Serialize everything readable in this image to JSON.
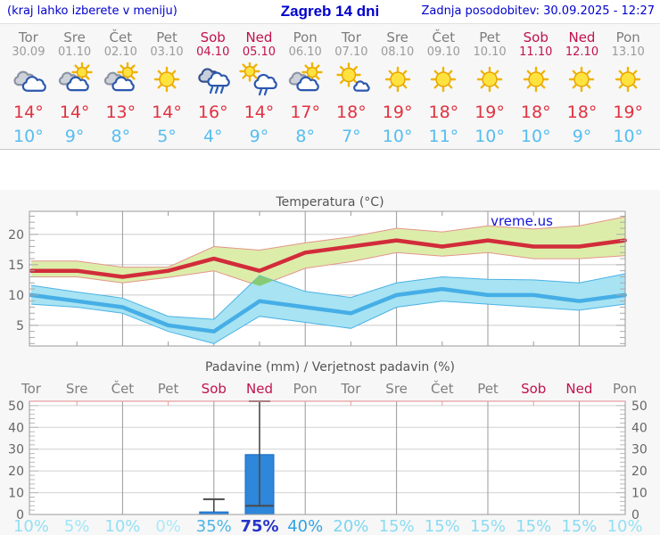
{
  "header": {
    "left_note": "(kraj lahko izberete v meniju)",
    "title": "Zagreb 14 dni",
    "updated": "Zadnja posodobitev: 30.09.2025 - 12:27"
  },
  "colors": {
    "header_blue": "#0000cd",
    "weekend_red": "#c2114e",
    "weekday_gray": "#7d7d7d",
    "tmax_red": "#e03240",
    "tmin_blue": "#56bdf0",
    "panel_bg": "#f7f7f7"
  },
  "forecast": {
    "days": [
      {
        "name": "Tor",
        "date": "30.09",
        "weekend": false,
        "icon": "cloudy",
        "tmax": "14°",
        "tmin": "10°"
      },
      {
        "name": "Sre",
        "date": "01.10",
        "weekend": false,
        "icon": "partly-cloudy",
        "tmax": "14°",
        "tmin": "9°"
      },
      {
        "name": "Čet",
        "date": "02.10",
        "weekend": false,
        "icon": "partly-cloudy",
        "tmax": "13°",
        "tmin": "8°"
      },
      {
        "name": "Pet",
        "date": "03.10",
        "weekend": false,
        "icon": "sunny",
        "tmax": "14°",
        "tmin": "5°"
      },
      {
        "name": "Sob",
        "date": "04.10",
        "weekend": true,
        "icon": "rain",
        "tmax": "16°",
        "tmin": "4°"
      },
      {
        "name": "Ned",
        "date": "05.10",
        "weekend": true,
        "icon": "sun-shower",
        "tmax": "14°",
        "tmin": "9°"
      },
      {
        "name": "Pon",
        "date": "06.10",
        "weekend": false,
        "icon": "partly-cloudy",
        "tmax": "17°",
        "tmin": "8°"
      },
      {
        "name": "Tor",
        "date": "07.10",
        "weekend": false,
        "icon": "mostly-sunny",
        "tmax": "18°",
        "tmin": "7°"
      },
      {
        "name": "Sre",
        "date": "08.10",
        "weekend": false,
        "icon": "sunny",
        "tmax": "19°",
        "tmin": "10°"
      },
      {
        "name": "Čet",
        "date": "09.10",
        "weekend": false,
        "icon": "sunny",
        "tmax": "18°",
        "tmin": "11°"
      },
      {
        "name": "Pet",
        "date": "10.10",
        "weekend": false,
        "icon": "sunny",
        "tmax": "19°",
        "tmin": "10°"
      },
      {
        "name": "Sob",
        "date": "11.10",
        "weekend": true,
        "icon": "sunny",
        "tmax": "18°",
        "tmin": "10°"
      },
      {
        "name": "Ned",
        "date": "12.10",
        "weekend": true,
        "icon": "sunny",
        "tmax": "18°",
        "tmin": "9°"
      },
      {
        "name": "Pon",
        "date": "13.10",
        "weekend": false,
        "icon": "sunny",
        "tmax": "19°",
        "tmin": "10°"
      }
    ]
  },
  "chart_data": [
    {
      "type": "line",
      "title": "Temperatura (°C)",
      "watermark": "vreme.us",
      "categories": [
        "Tor",
        "Sre",
        "Čet",
        "Pet",
        "Sob",
        "Ned",
        "Pon",
        "Tor",
        "Sre",
        "Čet",
        "Pet",
        "Sob",
        "Ned",
        "Pon"
      ],
      "ylim": [
        1.6,
        23.8
      ],
      "yticks": [
        5,
        10,
        15,
        20
      ],
      "grid": true,
      "legend": "none",
      "series": [
        {
          "name": "tmax",
          "color": "#d22c3a",
          "values": [
            14,
            14,
            13,
            14,
            16,
            14,
            17,
            18,
            19,
            18,
            19,
            18,
            18,
            19
          ]
        },
        {
          "name": "tmin",
          "color": "#46aee6",
          "values": [
            10,
            9,
            8,
            5,
            4,
            9,
            8,
            7,
            10,
            11,
            10,
            10,
            9,
            10
          ]
        }
      ],
      "bands": [
        {
          "name": "tmax-range",
          "fill": "#dcedaa",
          "edge": "#e4958a",
          "upper": [
            15.6,
            15.6,
            14.6,
            14.6,
            18,
            17.4,
            18.6,
            19.6,
            21,
            20.4,
            21.4,
            20.9,
            21.4,
            22.9
          ],
          "lower": [
            13,
            13,
            12,
            12.9,
            14,
            11.5,
            14.4,
            15.5,
            17,
            16.4,
            17,
            16,
            16,
            16.5
          ]
        },
        {
          "name": "tmin-range",
          "fill": "#a7e3f2",
          "edge": "#4ab2e6",
          "upper": [
            11.6,
            10.5,
            9.5,
            6.5,
            6,
            13.2,
            10.6,
            9.6,
            12,
            13,
            12.6,
            12.5,
            12,
            13.5
          ],
          "lower": [
            8.5,
            8,
            7,
            4,
            2,
            6.5,
            5.5,
            4.5,
            8,
            9,
            8.5,
            8,
            7.5,
            8.5
          ]
        }
      ],
      "overlap_fill": "#86cb73"
    },
    {
      "type": "bar",
      "title": "Padavine (mm) / Verjetnost padavin (%)",
      "categories": [
        "Tor",
        "Sre",
        "Čet",
        "Pet",
        "Sob",
        "Ned",
        "Pon",
        "Tor",
        "Sre",
        "Čet",
        "Pet",
        "Sob",
        "Ned",
        "Pon"
      ],
      "ylim": [
        0,
        52
      ],
      "yticks": [
        0,
        10,
        20,
        30,
        40,
        50
      ],
      "bar_color": "#2e87db",
      "bar_edge": "#1a6bc0",
      "values": [
        0,
        0,
        0,
        0,
        1.2,
        27.5,
        0,
        0,
        0,
        0,
        0,
        0,
        0,
        0
      ],
      "whisker_high": [
        0,
        0,
        0,
        0,
        7,
        52,
        0,
        0,
        0,
        0,
        0,
        0,
        0,
        0
      ],
      "median": [
        0,
        0,
        0,
        0,
        0,
        4,
        0,
        0,
        0,
        0,
        0,
        0,
        0,
        0
      ],
      "probabilities": [
        "10%",
        "5%",
        "10%",
        "0%",
        "35%",
        "75%",
        "40%",
        "20%",
        "15%",
        "15%",
        "15%",
        "15%",
        "15%",
        "10%"
      ],
      "probability_colors": [
        "#93e0f4",
        "#a0e6f6",
        "#93e0f4",
        "#abe9f8",
        "#49b4e9",
        "#2533cb",
        "#33a3e2",
        "#7bd6f0",
        "#8adcf2",
        "#8adcf2",
        "#8adcf2",
        "#8adcf2",
        "#8adcf2",
        "#93e0f4"
      ],
      "probability_bold": [
        false,
        false,
        false,
        false,
        false,
        true,
        false,
        false,
        false,
        false,
        false,
        false,
        false,
        false
      ]
    }
  ]
}
